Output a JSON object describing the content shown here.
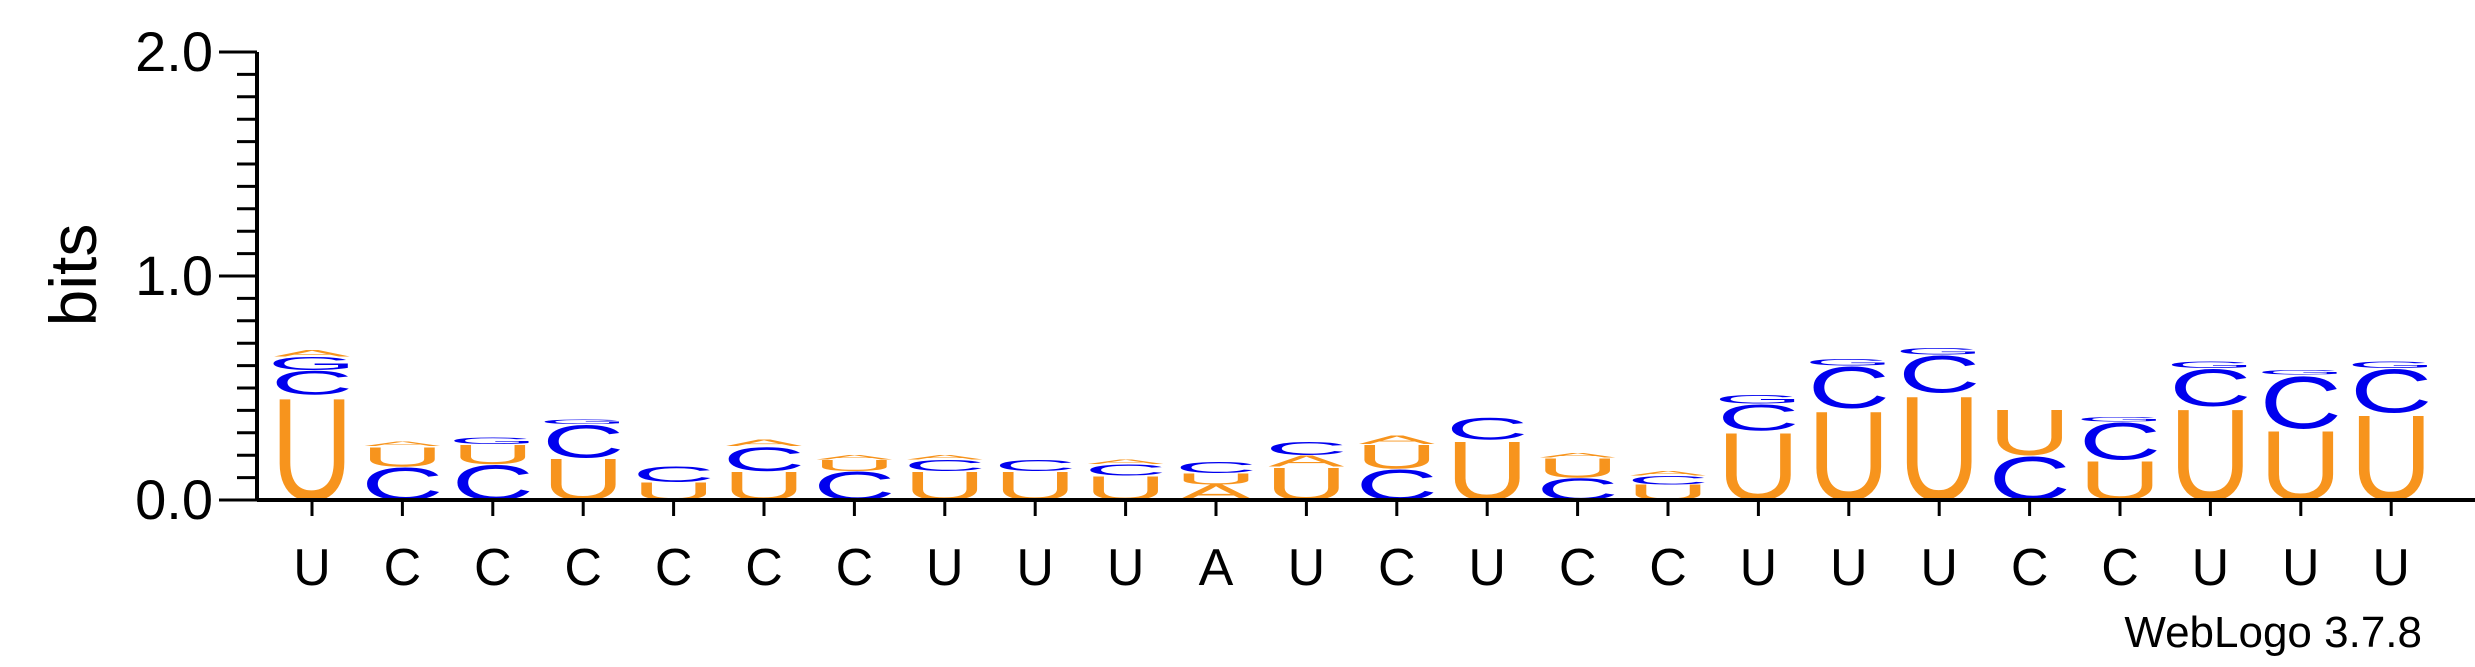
{
  "colors": {
    "U": "#f7941d",
    "C": "#0000ee",
    "A": "#f7941d",
    "G": "#0000ee",
    "axis": "#000000"
  },
  "credit": "WebLogo 3.7.8",
  "chart_data": {
    "type": "sequence-logo",
    "ylabel": "bits",
    "ylim": [
      0,
      2.0
    ],
    "yticks": [
      "0.0",
      "1.0",
      "2.0"
    ],
    "positions": [
      {
        "label": "U",
        "stack": [
          {
            "letter": "U",
            "bits": 0.47
          },
          {
            "letter": "C",
            "bits": 0.11
          },
          {
            "letter": "G",
            "bits": 0.06
          },
          {
            "letter": "A",
            "bits": 0.03
          }
        ]
      },
      {
        "label": "C",
        "stack": [
          {
            "letter": "C",
            "bits": 0.15
          },
          {
            "letter": "U",
            "bits": 0.09
          },
          {
            "letter": "A",
            "bits": 0.02
          }
        ]
      },
      {
        "label": "C",
        "stack": [
          {
            "letter": "C",
            "bits": 0.16
          },
          {
            "letter": "U",
            "bits": 0.09
          },
          {
            "letter": "G",
            "bits": 0.03
          }
        ]
      },
      {
        "label": "C",
        "stack": [
          {
            "letter": "U",
            "bits": 0.19
          },
          {
            "letter": "C",
            "bits": 0.15
          },
          {
            "letter": "G",
            "bits": 0.02
          }
        ]
      },
      {
        "label": "C",
        "stack": [
          {
            "letter": "U",
            "bits": 0.08
          },
          {
            "letter": "C",
            "bits": 0.07
          }
        ]
      },
      {
        "label": "C",
        "stack": [
          {
            "letter": "U",
            "bits": 0.13
          },
          {
            "letter": "C",
            "bits": 0.11
          },
          {
            "letter": "A",
            "bits": 0.03
          }
        ]
      },
      {
        "label": "C",
        "stack": [
          {
            "letter": "C",
            "bits": 0.13
          },
          {
            "letter": "U",
            "bits": 0.05
          },
          {
            "letter": "A",
            "bits": 0.02
          }
        ]
      },
      {
        "label": "U",
        "stack": [
          {
            "letter": "U",
            "bits": 0.13
          },
          {
            "letter": "C",
            "bits": 0.05
          },
          {
            "letter": "A",
            "bits": 0.02
          }
        ]
      },
      {
        "label": "U",
        "stack": [
          {
            "letter": "U",
            "bits": 0.13
          },
          {
            "letter": "C",
            "bits": 0.05
          }
        ]
      },
      {
        "label": "U",
        "stack": [
          {
            "letter": "U",
            "bits": 0.11
          },
          {
            "letter": "C",
            "bits": 0.05
          },
          {
            "letter": "A",
            "bits": 0.02
          }
        ]
      },
      {
        "label": "A",
        "stack": [
          {
            "letter": "A",
            "bits": 0.07
          },
          {
            "letter": "U",
            "bits": 0.05
          },
          {
            "letter": "C",
            "bits": 0.05
          }
        ]
      },
      {
        "label": "U",
        "stack": [
          {
            "letter": "U",
            "bits": 0.15
          },
          {
            "letter": "A",
            "bits": 0.05
          },
          {
            "letter": "C",
            "bits": 0.06
          }
        ]
      },
      {
        "label": "C",
        "stack": [
          {
            "letter": "C",
            "bits": 0.14
          },
          {
            "letter": "U",
            "bits": 0.11
          },
          {
            "letter": "A",
            "bits": 0.04
          }
        ]
      },
      {
        "label": "U",
        "stack": [
          {
            "letter": "U",
            "bits": 0.27
          },
          {
            "letter": "C",
            "bits": 0.1
          }
        ]
      },
      {
        "label": "C",
        "stack": [
          {
            "letter": "C",
            "bits": 0.1
          },
          {
            "letter": "U",
            "bits": 0.09
          },
          {
            "letter": "A",
            "bits": 0.02
          }
        ]
      },
      {
        "label": "C",
        "stack": [
          {
            "letter": "U",
            "bits": 0.07
          },
          {
            "letter": "C",
            "bits": 0.04
          },
          {
            "letter": "A",
            "bits": 0.02
          }
        ]
      },
      {
        "label": "U",
        "stack": [
          {
            "letter": "U",
            "bits": 0.31
          },
          {
            "letter": "C",
            "bits": 0.12
          },
          {
            "letter": "G",
            "bits": 0.04
          }
        ]
      },
      {
        "label": "U",
        "stack": [
          {
            "letter": "U",
            "bits": 0.41
          },
          {
            "letter": "C",
            "bits": 0.19
          },
          {
            "letter": "G",
            "bits": 0.03
          }
        ]
      },
      {
        "label": "U",
        "stack": [
          {
            "letter": "U",
            "bits": 0.48
          },
          {
            "letter": "C",
            "bits": 0.17
          },
          {
            "letter": "G",
            "bits": 0.03
          }
        ]
      },
      {
        "label": "C",
        "stack": [
          {
            "letter": "C",
            "bits": 0.2
          },
          {
            "letter": "U",
            "bits": 0.21
          }
        ]
      },
      {
        "label": "C",
        "stack": [
          {
            "letter": "U",
            "bits": 0.18
          },
          {
            "letter": "C",
            "bits": 0.17
          },
          {
            "letter": "G",
            "bits": 0.02
          }
        ]
      },
      {
        "label": "U",
        "stack": [
          {
            "letter": "U",
            "bits": 0.42
          },
          {
            "letter": "C",
            "bits": 0.17
          },
          {
            "letter": "G",
            "bits": 0.03
          }
        ]
      },
      {
        "label": "U",
        "stack": [
          {
            "letter": "U",
            "bits": 0.32
          },
          {
            "letter": "C",
            "bits": 0.24
          },
          {
            "letter": "G",
            "bits": 0.02
          }
        ]
      },
      {
        "label": "U",
        "stack": [
          {
            "letter": "U",
            "bits": 0.39
          },
          {
            "letter": "C",
            "bits": 0.2
          },
          {
            "letter": "G",
            "bits": 0.03
          }
        ]
      }
    ]
  }
}
